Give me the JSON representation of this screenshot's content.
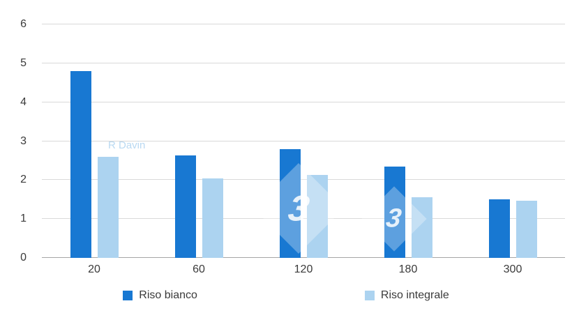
{
  "chart_data": {
    "type": "bar",
    "title": "",
    "xlabel": "",
    "ylabel": "",
    "categories": [
      "20",
      "60",
      "120",
      "180",
      "300"
    ],
    "series": [
      {
        "name": "Riso bianco",
        "color": "#1878d2",
        "values": [
          4.8,
          2.63,
          2.8,
          2.35,
          1.5
        ]
      },
      {
        "name": "Riso integrale",
        "color": "#acd3f0",
        "values": [
          2.6,
          2.05,
          2.13,
          1.55,
          1.47
        ]
      }
    ],
    "ylim": [
      0,
      6
    ],
    "yticks": [
      0,
      1,
      2,
      3,
      4,
      5,
      6
    ],
    "grid": true,
    "legend_position": "bottom"
  },
  "watermark": {
    "text": "R Davin",
    "badges": [
      "3",
      "3"
    ]
  }
}
